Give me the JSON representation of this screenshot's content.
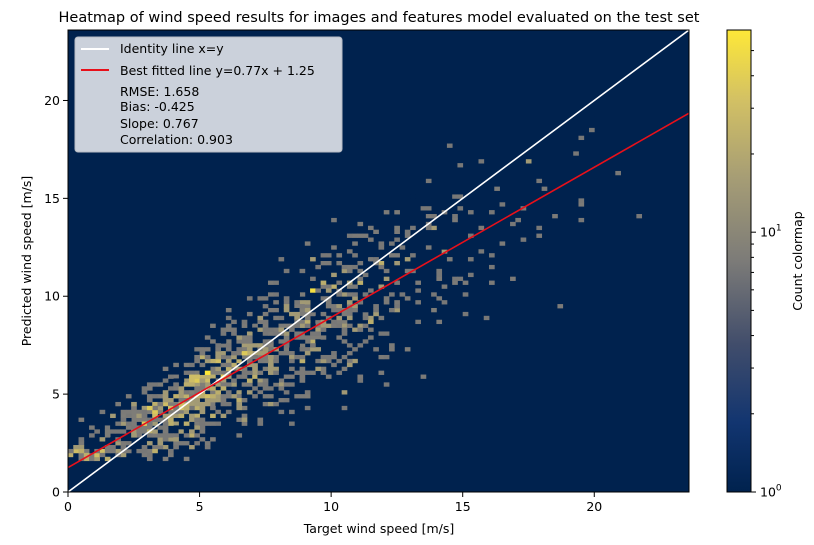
{
  "chart_data": {
    "type": "heatmap",
    "title": "Heatmap of wind speed results for images and features model evaluated on the test set",
    "xlabel": "Target wind speed [m/s]",
    "ylabel": "Predicted wind speed [m/s]",
    "xlim": [
      0,
      23.6
    ],
    "ylim": [
      0,
      23.6
    ],
    "x_ticks": [
      "0",
      "5",
      "10",
      "15",
      "20"
    ],
    "y_ticks": [
      "0",
      "5",
      "10",
      "15",
      "20"
    ],
    "colorbar": {
      "label": "Count colormap",
      "scale": "log",
      "range": [
        1,
        60
      ],
      "tick_labels": [
        {
          "label": "10^0",
          "base": "10",
          "exp": "0",
          "value": 1
        },
        {
          "label": "10^1",
          "base": "10",
          "exp": "1",
          "value": 10
        }
      ],
      "colormap": "cividis"
    },
    "background_color": "#00224e",
    "lines": [
      {
        "name": "Identity line x=y",
        "slope": 1,
        "intercept": 0,
        "color": "#ffffff"
      },
      {
        "name": "Best fitted line y=0.77x + 1.25",
        "slope": 0.767,
        "intercept": 1.25,
        "color": "#e8101a"
      }
    ],
    "stats": [
      "RMSE: 1.658",
      "Bias: -0.425",
      "Slope: 0.767",
      "Correlation: 0.903"
    ],
    "legend_placement": "top-left",
    "grid": false,
    "density_model": {
      "description": "counts concentrate around y = 0.767x + 1.25, densest near x = 3–9 m/s",
      "bins": 0.2,
      "peak_count": 60
    }
  }
}
